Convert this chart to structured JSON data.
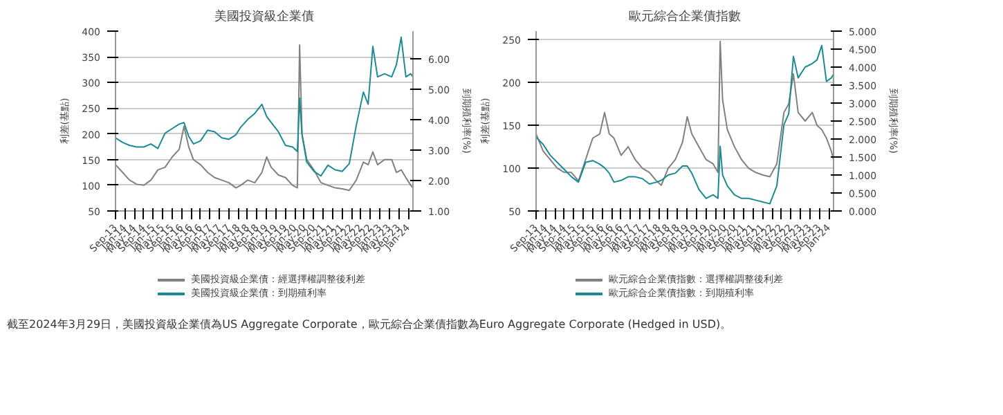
{
  "chart_data": [
    {
      "type": "line",
      "title": "美國投資級企業債",
      "ylabel": "利差(基點)",
      "y2label": "到期殖利率(%)",
      "grid": "y",
      "legend": "bottom",
      "line_style": "solid",
      "marker": "none",
      "x": [
        "2013-09",
        "2013-12",
        "2014-03",
        "2014-06",
        "2014-09",
        "2014-12",
        "2015-03",
        "2015-06",
        "2015-09",
        "2015-12",
        "2016-02",
        "2016-04",
        "2016-06",
        "2016-09",
        "2016-12",
        "2017-03",
        "2017-06",
        "2017-09",
        "2017-12",
        "2018-02",
        "2018-05",
        "2018-08",
        "2018-11",
        "2019-01",
        "2019-03",
        "2019-06",
        "2019-09",
        "2019-12",
        "2020-02",
        "2020-03",
        "2020-04",
        "2020-06",
        "2020-09",
        "2020-12",
        "2021-03",
        "2021-06",
        "2021-09",
        "2021-12",
        "2022-03",
        "2022-06",
        "2022-08",
        "2022-10",
        "2022-12",
        "2023-03",
        "2023-06",
        "2023-08",
        "2023-10",
        "2023-12",
        "2024-02",
        "2024-03"
      ],
      "xlim": [
        "2013-09",
        "2024-03"
      ],
      "xticks": [
        {
          "value": "2013-09",
          "label": "Sep-13"
        },
        {
          "value": "2014-01",
          "label": "Jan-14"
        },
        {
          "value": "2014-05",
          "label": "May-14"
        },
        {
          "value": "2014-09",
          "label": "Sep-14"
        },
        {
          "value": "2015-01",
          "label": "Jan-15"
        },
        {
          "value": "2015-05",
          "label": "May-15"
        },
        {
          "value": "2015-09",
          "label": "Sep-15"
        },
        {
          "value": "2016-01",
          "label": "Jan-16"
        },
        {
          "value": "2016-05",
          "label": "May-16"
        },
        {
          "value": "2016-09",
          "label": "Sep-16"
        },
        {
          "value": "2017-01",
          "label": "Jan-17"
        },
        {
          "value": "2017-05",
          "label": "May-17"
        },
        {
          "value": "2017-09",
          "label": "Sep-17"
        },
        {
          "value": "2018-01",
          "label": "Jan-18"
        },
        {
          "value": "2018-05",
          "label": "May-18"
        },
        {
          "value": "2018-09",
          "label": "Sep-18"
        },
        {
          "value": "2019-01",
          "label": "Jan-19"
        },
        {
          "value": "2019-05",
          "label": "May-19"
        },
        {
          "value": "2019-09",
          "label": "Sep-19"
        },
        {
          "value": "2020-01",
          "label": "Jan-20"
        },
        {
          "value": "2020-05",
          "label": "May-20"
        },
        {
          "value": "2020-09",
          "label": "Sep-20"
        },
        {
          "value": "2021-01",
          "label": "Jan-21"
        },
        {
          "value": "2021-05",
          "label": "May-21"
        },
        {
          "value": "2021-09",
          "label": "Sep-21"
        },
        {
          "value": "2022-01",
          "label": "Jan-22"
        },
        {
          "value": "2022-05",
          "label": "May-22"
        },
        {
          "value": "2022-09",
          "label": "Sep-22"
        },
        {
          "value": "2023-01",
          "label": "Jan-23"
        },
        {
          "value": "2023-05",
          "label": "May-23"
        },
        {
          "value": "2023-09",
          "label": "Sep-23"
        },
        {
          "value": "2024-01",
          "label": "Jan-24"
        }
      ],
      "ylim": [
        50,
        400
      ],
      "yticks": [
        50,
        100,
        150,
        200,
        250,
        300,
        350,
        400
      ],
      "y2lim": [
        1,
        6.9
      ],
      "y2ticks": [
        {
          "value": 1,
          "label": "1.00"
        },
        {
          "value": 2,
          "label": "2.00"
        },
        {
          "value": 3,
          "label": "3.00"
        },
        {
          "value": 4,
          "label": "4.00"
        },
        {
          "value": 5,
          "label": "5.00"
        },
        {
          "value": 6,
          "label": "6.00"
        }
      ],
      "series": [
        {
          "name": "美國投資級企業債：經選擇權調整後利差",
          "color": "#808080",
          "values": [
            140,
            125,
            110,
            102,
            100,
            110,
            130,
            135,
            155,
            170,
            215,
            175,
            150,
            140,
            125,
            115,
            110,
            105,
            95,
            100,
            110,
            105,
            125,
            155,
            135,
            120,
            115,
            100,
            95,
            373,
            200,
            150,
            130,
            105,
            100,
            95,
            93,
            90,
            110,
            145,
            140,
            165,
            140,
            150,
            150,
            125,
            130,
            115,
            100,
            95
          ]
        },
        {
          "name": "美國投資級企業債：到期殖利率",
          "color": "#1a8a94",
          "axis": "y2",
          "values": [
            3.4,
            3.25,
            3.15,
            3.1,
            3.1,
            3.2,
            3.05,
            3.55,
            3.7,
            3.85,
            3.9,
            3.45,
            3.2,
            3.3,
            3.65,
            3.6,
            3.4,
            3.35,
            3.5,
            3.75,
            4.0,
            4.2,
            4.5,
            4.1,
            3.9,
            3.6,
            3.15,
            3.1,
            2.95,
            4.7,
            3.5,
            2.6,
            2.3,
            2.15,
            2.5,
            2.35,
            2.3,
            2.55,
            3.8,
            4.9,
            4.5,
            6.4,
            5.4,
            5.5,
            5.4,
            5.8,
            6.7,
            5.4,
            5.5,
            5.4
          ]
        }
      ],
      "annotations": [
        "截至2024年3月29日，美國投資級企業債為US Aggregate Corporate，歐元綜合企業債指數為Euro Aggregate Corporate (Hedged in USD)。"
      ]
    },
    {
      "type": "line",
      "title": "歐元綜合企業債指數",
      "ylabel": "利差(基點)",
      "y2label": "到期殖利率(%)",
      "grid": "y",
      "legend": "bottom",
      "line_style": "solid",
      "marker": "none",
      "x": [
        "2013-09",
        "2013-12",
        "2014-03",
        "2014-06",
        "2014-09",
        "2014-12",
        "2015-03",
        "2015-06",
        "2015-09",
        "2015-12",
        "2016-02",
        "2016-04",
        "2016-06",
        "2016-09",
        "2016-12",
        "2017-03",
        "2017-06",
        "2017-09",
        "2017-12",
        "2018-02",
        "2018-05",
        "2018-08",
        "2018-11",
        "2019-01",
        "2019-03",
        "2019-06",
        "2019-09",
        "2019-12",
        "2020-02",
        "2020-03",
        "2020-04",
        "2020-06",
        "2020-09",
        "2020-12",
        "2021-03",
        "2021-06",
        "2021-09",
        "2021-12",
        "2022-03",
        "2022-06",
        "2022-08",
        "2022-10",
        "2022-12",
        "2023-03",
        "2023-06",
        "2023-08",
        "2023-10",
        "2023-12",
        "2024-02",
        "2024-03"
      ],
      "xlim": [
        "2013-09",
        "2024-03"
      ],
      "xticks": [
        {
          "value": "2013-09",
          "label": "Sep-13"
        },
        {
          "value": "2014-01",
          "label": "Jan-14"
        },
        {
          "value": "2014-05",
          "label": "May-14"
        },
        {
          "value": "2014-09",
          "label": "Sep-14"
        },
        {
          "value": "2015-01",
          "label": "Jan-15"
        },
        {
          "value": "2015-05",
          "label": "May-15"
        },
        {
          "value": "2015-09",
          "label": "Sep-15"
        },
        {
          "value": "2016-01",
          "label": "Jan-16"
        },
        {
          "value": "2016-05",
          "label": "May-16"
        },
        {
          "value": "2016-09",
          "label": "Sep-16"
        },
        {
          "value": "2017-01",
          "label": "Jan-17"
        },
        {
          "value": "2017-05",
          "label": "May-17"
        },
        {
          "value": "2017-09",
          "label": "Sep-17"
        },
        {
          "value": "2018-01",
          "label": "Jan-18"
        },
        {
          "value": "2018-05",
          "label": "May-18"
        },
        {
          "value": "2018-09",
          "label": "Sep-18"
        },
        {
          "value": "2019-01",
          "label": "Jan-19"
        },
        {
          "value": "2019-05",
          "label": "May-19"
        },
        {
          "value": "2019-09",
          "label": "Sep-19"
        },
        {
          "value": "2020-01",
          "label": "Jan-20"
        },
        {
          "value": "2020-05",
          "label": "May-20"
        },
        {
          "value": "2020-09",
          "label": "Sep-20"
        },
        {
          "value": "2021-01",
          "label": "Jan-21"
        },
        {
          "value": "2021-05",
          "label": "May-21"
        },
        {
          "value": "2021-09",
          "label": "Sep-21"
        },
        {
          "value": "2022-01",
          "label": "Jan-22"
        },
        {
          "value": "2022-05",
          "label": "May-22"
        },
        {
          "value": "2022-09",
          "label": "Sep-22"
        },
        {
          "value": "2023-01",
          "label": "Jan-23"
        },
        {
          "value": "2023-05",
          "label": "May-23"
        },
        {
          "value": "2023-09",
          "label": "Sep-23"
        },
        {
          "value": "2024-01",
          "label": "Jan-24"
        }
      ],
      "ylim": [
        50,
        260
      ],
      "yticks": [
        50,
        100,
        150,
        200,
        250
      ],
      "y2lim": [
        0,
        5
      ],
      "y2ticks": [
        {
          "value": 0,
          "label": "0.000"
        },
        {
          "value": 0.5,
          "label": "0.500"
        },
        {
          "value": 1,
          "label": "1.000"
        },
        {
          "value": 1.5,
          "label": "1.500"
        },
        {
          "value": 2,
          "label": "2.000"
        },
        {
          "value": 2.5,
          "label": "2.500"
        },
        {
          "value": 3,
          "label": "3.000"
        },
        {
          "value": 3.5,
          "label": "3.500"
        },
        {
          "value": 4,
          "label": "4.000"
        },
        {
          "value": 4.5,
          "label": "4.500"
        },
        {
          "value": 5,
          "label": "5.000"
        }
      ],
      "series": [
        {
          "name": "歐元綜合企業債指數：選擇權調整後利差",
          "color": "#808080",
          "values": [
            140,
            120,
            110,
            100,
            95,
            95,
            85,
            110,
            135,
            140,
            165,
            140,
            135,
            115,
            125,
            110,
            100,
            95,
            85,
            80,
            100,
            110,
            130,
            160,
            140,
            125,
            110,
            105,
            95,
            248,
            180,
            145,
            125,
            110,
            100,
            95,
            92,
            90,
            105,
            165,
            175,
            210,
            165,
            155,
            165,
            150,
            145,
            135,
            120,
            110
          ]
        },
        {
          "name": "歐元綜合企業債指數：到期殖利率",
          "color": "#1a8a94",
          "axis": "y2",
          "values": [
            2.05,
            1.85,
            1.55,
            1.35,
            1.15,
            0.95,
            0.8,
            1.35,
            1.4,
            1.3,
            1.2,
            1.05,
            0.8,
            0.85,
            0.95,
            0.95,
            0.9,
            0.75,
            0.8,
            0.85,
            1.0,
            1.05,
            1.25,
            1.25,
            1.05,
            0.6,
            0.35,
            0.45,
            0.35,
            1.8,
            1.0,
            0.7,
            0.45,
            0.35,
            0.35,
            0.3,
            0.25,
            0.2,
            0.7,
            2.4,
            2.7,
            4.3,
            3.7,
            4.0,
            4.1,
            4.2,
            4.6,
            3.6,
            3.7,
            3.8
          ]
        }
      ]
    }
  ]
}
